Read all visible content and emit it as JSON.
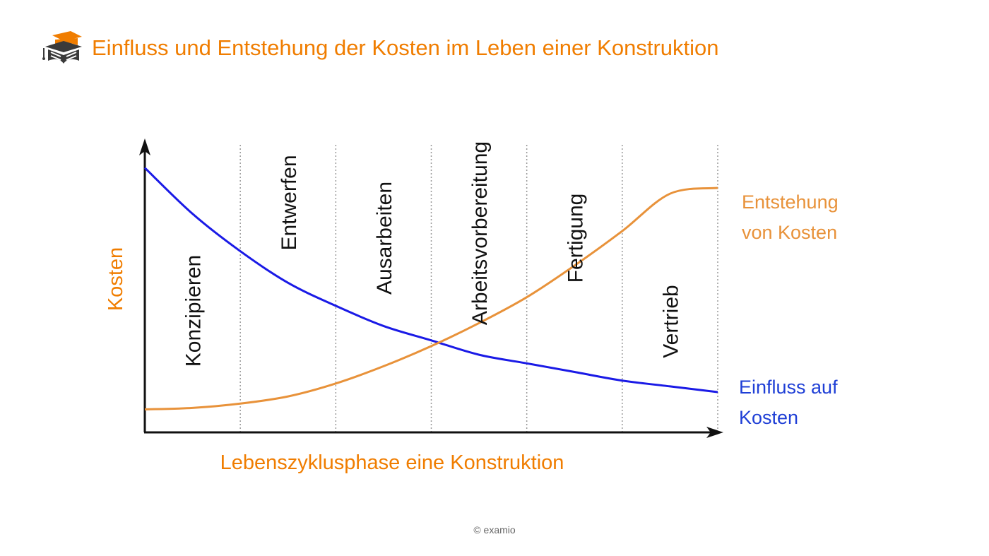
{
  "header": {
    "title": "Einfluss und Entstehung der Kosten im Leben einer Konstruktion",
    "logo_icon": "graduation-cap-book-icon"
  },
  "footer": {
    "copyright": "© examio"
  },
  "colors": {
    "title": "#f07d00",
    "axis_label": "#f07d00",
    "curve_creation": "#e8923a",
    "curve_influence": "#1a1ae6",
    "label_creation": "#e8923a",
    "label_influence": "#1f3fd6",
    "phase_text": "#111111",
    "axis": "#111111",
    "divider": "#999999"
  },
  "chart_data": {
    "type": "line",
    "xlabel": "Lebenszyklusphase eine Konstruktion",
    "ylabel": "Kosten",
    "phases": [
      "Konzipieren",
      "Entwerfen",
      "Ausarbeiten",
      "Arbeitsvorbereitung",
      "Fertigung",
      "Vertrieb"
    ],
    "series": [
      {
        "name": "Einfluss auf Kosten",
        "label_lines": [
          "Einfluss auf",
          "Kosten"
        ],
        "x": [
          0,
          0.5,
          1,
          1.5,
          2,
          2.5,
          3,
          3.5,
          4,
          4.5,
          5,
          5.5,
          6
        ],
        "values": [
          0.92,
          0.76,
          0.63,
          0.52,
          0.44,
          0.37,
          0.32,
          0.27,
          0.24,
          0.21,
          0.18,
          0.16,
          0.14
        ]
      },
      {
        "name": "Entstehung von Kosten",
        "label_lines": [
          "Entstehung",
          "von Kosten"
        ],
        "x": [
          0,
          0.5,
          1,
          1.5,
          2,
          2.5,
          3,
          3.5,
          4,
          4.5,
          5,
          5.5,
          6
        ],
        "values": [
          0.08,
          0.085,
          0.1,
          0.125,
          0.17,
          0.23,
          0.3,
          0.38,
          0.47,
          0.58,
          0.7,
          0.83,
          0.85
        ]
      }
    ],
    "xlim": [
      0,
      6
    ],
    "ylim": [
      0,
      1
    ],
    "grid": "vertical dotted dividers between phases"
  }
}
